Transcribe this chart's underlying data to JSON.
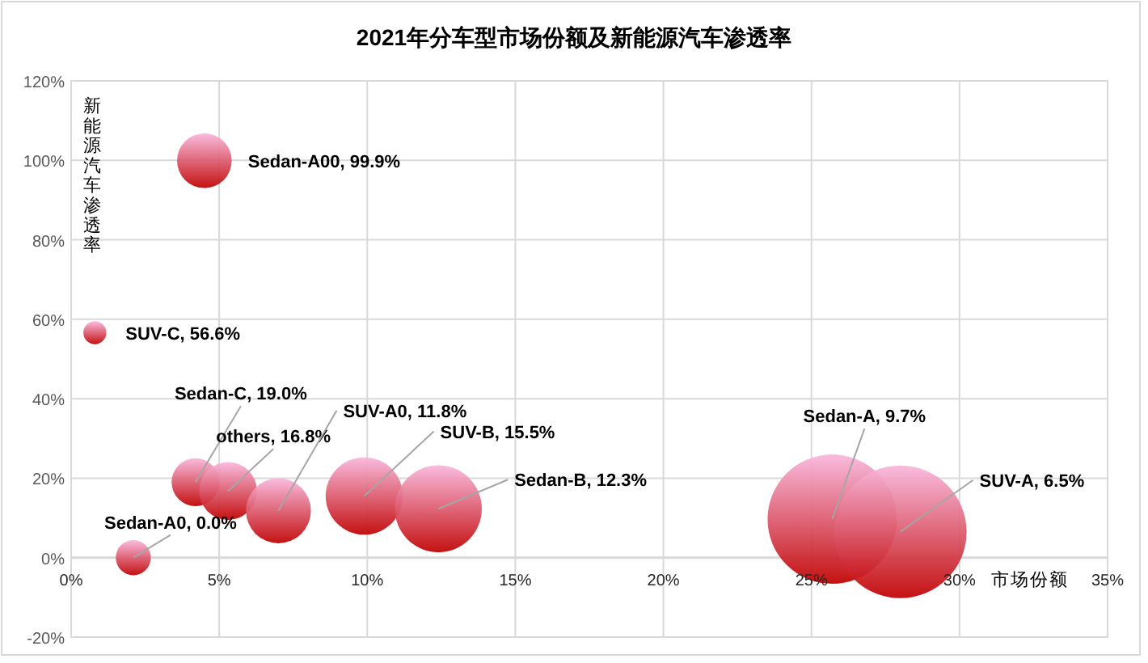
{
  "chart_data": {
    "type": "bubble",
    "title": "2021年分车型市场份额及新能源汽车渗透率",
    "xlabel": "市场份额",
    "ylabel": "新能源汽车渗透率",
    "xlim": [
      0,
      35
    ],
    "ylim": [
      -20,
      120
    ],
    "xticks": [
      {
        "value": 0,
        "label": "0%"
      },
      {
        "value": 5,
        "label": "5%"
      },
      {
        "value": 10,
        "label": "10%"
      },
      {
        "value": 15,
        "label": "15%"
      },
      {
        "value": 20,
        "label": "20%"
      },
      {
        "value": 25,
        "label": "25%"
      },
      {
        "value": 30,
        "label": "30%"
      },
      {
        "value": 35,
        "label": "35%"
      }
    ],
    "yticks": [
      {
        "value": -20,
        "label": "-20%"
      },
      {
        "value": 0,
        "label": "0%"
      },
      {
        "value": 20,
        "label": "20%"
      },
      {
        "value": 40,
        "label": "40%"
      },
      {
        "value": 60,
        "label": "60%"
      },
      {
        "value": 80,
        "label": "80%"
      },
      {
        "value": 100,
        "label": "100%"
      },
      {
        "value": 120,
        "label": "120%"
      }
    ],
    "grid": true,
    "series": [
      {
        "color": "#c00000",
        "x": [
          4.5,
          0.8,
          4.2,
          5.3,
          7.0,
          9.9,
          12.4,
          25.7,
          28.0,
          2.1
        ],
        "values": [
          99.9,
          56.6,
          19.0,
          16.8,
          11.8,
          15.5,
          12.3,
          9.7,
          6.5,
          0.0
        ],
        "sizes": [
          0.17,
          0.03,
          0.13,
          0.19,
          0.24,
          0.34,
          0.43,
          0.95,
          1,
          0.07
        ],
        "value_labels": [
          "Sedan-A00, 99.9%",
          "SUV-C, 56.6%",
          "Sedan-C, 19.0%",
          "others, 16.8%",
          "SUV-A0, 11.8%",
          "SUV-B, 15.5%",
          "Sedan-B, 12.3%",
          "Sedan-A, 9.7%",
          "SUV-A, 6.5%",
          "Sedan-A0, 0.0%"
        ]
      }
    ]
  }
}
